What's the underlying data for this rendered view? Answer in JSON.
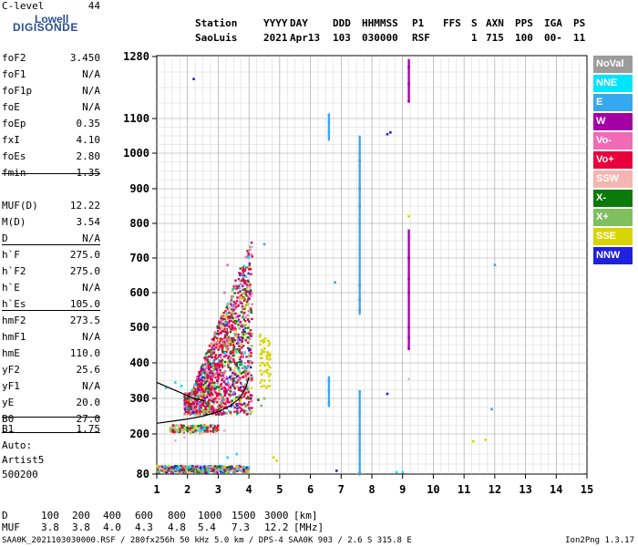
{
  "logo": {
    "line1": "Lowell",
    "line2": "DIGISONDE"
  },
  "header": {
    "labels": [
      "Station",
      "YYYY",
      "DAY",
      "DDD",
      "HHMMSS",
      "P1",
      "FFS",
      "S",
      "AXN",
      "PPS",
      "IGA",
      "PS"
    ],
    "values": [
      "SaoLuis",
      "2021",
      "Apr13",
      "103",
      "030000",
      "RSF",
      "",
      "1",
      "715",
      "100",
      "00-",
      "11"
    ]
  },
  "params": [
    {
      "name": "foF2",
      "value": "3.450"
    },
    {
      "name": "foF1",
      "value": "N/A"
    },
    {
      "name": "foF1p",
      "value": "N/A"
    },
    {
      "name": "foE",
      "value": "N/A"
    },
    {
      "name": "foEp",
      "value": "0.35"
    },
    {
      "name": "fxI",
      "value": "4.10"
    },
    {
      "name": "foEs",
      "value": "2.80"
    },
    {
      "name": "fmin",
      "value": "1.35"
    },
    {
      "name": "MUF(D)",
      "value": "12.22"
    },
    {
      "name": "M(D)",
      "value": "3.54"
    },
    {
      "name": "D",
      "value": "N/A"
    },
    {
      "name": "h`F",
      "value": "275.0"
    },
    {
      "name": "h`F2",
      "value": "275.0"
    },
    {
      "name": "h`E",
      "value": "N/A"
    },
    {
      "name": "h`Es",
      "value": "105.0"
    },
    {
      "name": "hmF2",
      "value": "273.5"
    },
    {
      "name": "hmF1",
      "value": "N/A"
    },
    {
      "name": "hmE",
      "value": "110.0"
    },
    {
      "name": "yF2",
      "value": "25.6"
    },
    {
      "name": "yF1",
      "value": "N/A"
    },
    {
      "name": "yE",
      "value": "20.0"
    },
    {
      "name": "B0",
      "value": "27.0"
    },
    {
      "name": "B1",
      "value": "1.75"
    },
    {
      "name": "C-level",
      "value": "44"
    }
  ],
  "scaler": {
    "line1": "Auto:",
    "line2": "Artist5",
    "line3": "500200"
  },
  "legend": [
    {
      "label": "NoVal",
      "color": "#9b9b9b"
    },
    {
      "label": "NNE",
      "color": "#00e5ff"
    },
    {
      "label": "E",
      "color": "#35a8f0"
    },
    {
      "label": "W",
      "color": "#a400a4"
    },
    {
      "label": "Vo-",
      "color": "#f06ab4"
    },
    {
      "label": "Vo+",
      "color": "#e8003c"
    },
    {
      "label": "SSW",
      "color": "#f5b5b0"
    },
    {
      "label": "X-",
      "color": "#0b7a0b"
    },
    {
      "label": "X+",
      "color": "#7fbf5e"
    },
    {
      "label": "SSE",
      "color": "#d8d400"
    },
    {
      "label": "NNW",
      "color": "#2020e0"
    }
  ],
  "chart_data": {
    "type": "scatter",
    "title": "",
    "xlabel": "",
    "ylabel": "",
    "xlim": [
      1,
      15
    ],
    "ylim": [
      80,
      1280
    ],
    "x_ticks": [
      1,
      2,
      3,
      4,
      5,
      6,
      7,
      8,
      9,
      10,
      11,
      12,
      13,
      14,
      15
    ],
    "y_ticks": [
      80,
      200,
      300,
      400,
      500,
      600,
      700,
      800,
      900,
      1000,
      1100,
      1280
    ],
    "grid": true,
    "point_groups": [
      {
        "direction": "NNW",
        "points": [
          [
            2.2,
            1215
          ],
          [
            8.6,
            1060
          ],
          [
            8.5,
            1055
          ],
          [
            8.5,
            313
          ],
          [
            6.85,
            90
          ],
          [
            7.6,
            83
          ]
        ]
      },
      {
        "direction": "E",
        "points": [
          [
            6.6,
            1110
          ],
          [
            6.6,
            1090
          ],
          [
            6.6,
            1060
          ],
          [
            6.6,
            350
          ],
          [
            6.6,
            320
          ],
          [
            6.6,
            285
          ],
          [
            7.6,
            1000
          ],
          [
            7.6,
            900
          ],
          [
            7.6,
            800
          ],
          [
            7.6,
            320
          ],
          [
            7.6,
            260
          ],
          [
            7.6,
            200
          ],
          [
            7.6,
            150
          ],
          [
            4.5,
            740
          ],
          [
            6.8,
            630
          ],
          [
            11.9,
            270
          ],
          [
            12.0,
            680
          ]
        ]
      },
      {
        "direction": "W",
        "points": [
          [
            9.2,
            1250
          ],
          [
            9.2,
            1200
          ],
          [
            9.2,
            1150
          ],
          [
            9.2,
            700
          ],
          [
            9.2,
            640
          ],
          [
            9.2,
            600
          ],
          [
            9.2,
            500
          ],
          [
            9.2,
            470
          ],
          [
            9.2,
            440
          ],
          [
            7.6,
            980
          ],
          [
            7.6,
            900
          ],
          [
            7.6,
            850
          ],
          [
            7.6,
            620
          ],
          [
            7.6,
            580
          ],
          [
            7.6,
            550
          ]
        ]
      },
      {
        "direction": "Vo+",
        "points": [
          [
            2.0,
            290
          ],
          [
            2.2,
            285
          ],
          [
            2.5,
            283
          ],
          [
            2.7,
            295
          ],
          [
            2.9,
            300
          ],
          [
            3.0,
            310
          ],
          [
            3.2,
            320
          ],
          [
            3.4,
            330
          ],
          [
            3.6,
            345
          ],
          [
            3.8,
            360
          ],
          [
            3.9,
            380
          ],
          [
            2.3,
            265
          ],
          [
            2.6,
            270
          ],
          [
            3.1,
            275
          ],
          [
            3.3,
            290
          ]
        ]
      },
      {
        "direction": "Vo-",
        "points": [
          [
            3.0,
            450
          ],
          [
            3.1,
            520
          ],
          [
            3.2,
            600
          ],
          [
            3.3,
            680
          ],
          [
            3.5,
            560
          ],
          [
            3.6,
            480
          ],
          [
            3.8,
            420
          ]
        ]
      },
      {
        "direction": "SSE",
        "points": [
          [
            4.5,
            460
          ],
          [
            4.6,
            430
          ],
          [
            4.4,
            400
          ],
          [
            4.6,
            380
          ],
          [
            4.5,
            350
          ],
          [
            4.8,
            130
          ],
          [
            4.9,
            120
          ],
          [
            11.3,
            178
          ],
          [
            11.7,
            183
          ],
          [
            9.2,
            820
          ]
        ]
      },
      {
        "direction": "X-",
        "points": [
          [
            3.5,
            350
          ],
          [
            3.6,
            400
          ],
          [
            3.7,
            430
          ],
          [
            3.8,
            470
          ],
          [
            3.4,
            320
          ],
          [
            4.0,
            300
          ],
          [
            4.3,
            296
          ]
        ]
      },
      {
        "direction": "X+",
        "points": [
          [
            3.9,
            380
          ],
          [
            4.0,
            420
          ],
          [
            3.7,
            300
          ],
          [
            4.4,
            280
          ],
          [
            4.5,
            300
          ]
        ]
      },
      {
        "direction": "NNE",
        "points": [
          [
            1.3,
            330
          ],
          [
            1.6,
            345
          ],
          [
            1.8,
            335
          ],
          [
            3.3,
            130
          ],
          [
            3.6,
            140
          ],
          [
            8.8,
            85
          ],
          [
            9.0,
            85
          ]
        ]
      },
      {
        "direction": "SSW",
        "points": [
          [
            1.6,
            180
          ],
          [
            1.9,
            190
          ],
          [
            2.4,
            200
          ],
          [
            2.9,
            205
          ],
          [
            3.2,
            210
          ],
          [
            9.2,
            355
          ]
        ]
      }
    ],
    "es_band": {
      "x_range": [
        1.4,
        3.0
      ],
      "h_range": [
        205,
        225
      ]
    },
    "low_band": {
      "x_range": [
        1.0,
        4.0
      ],
      "h_range": [
        85,
        105
      ]
    },
    "trace_line": [
      [
        1.0,
        230
      ],
      [
        1.5,
        236
      ],
      [
        2.0,
        242
      ],
      [
        2.5,
        250
      ],
      [
        3.0,
        262
      ],
      [
        3.4,
        280
      ],
      [
        3.7,
        300
      ],
      [
        3.9,
        330
      ],
      [
        4.0,
        360
      ]
    ],
    "trace_line2": [
      [
        1.0,
        345
      ],
      [
        1.4,
        330
      ],
      [
        1.8,
        315
      ],
      [
        2.2,
        300
      ],
      [
        2.6,
        292
      ]
    ]
  },
  "footer": {
    "d_label": "D",
    "d_values": [
      "100",
      "200",
      "400",
      "600",
      "800",
      "1000",
      "1500",
      "3000",
      "[km]"
    ],
    "muf_label": "MUF",
    "muf_values": [
      "3.8",
      "3.8",
      "4.0",
      "4.3",
      "4.8",
      "5.4",
      "7.3",
      "12.2",
      "[MHz]"
    ],
    "file_info": "SAA0K_2021103030000.RSF / 280fx256h 50 kHz 5.0 km / DPS-4 SAA0K 903 / 2.6 S 315.8 E",
    "version": "Ion2Png 1.3.17"
  }
}
